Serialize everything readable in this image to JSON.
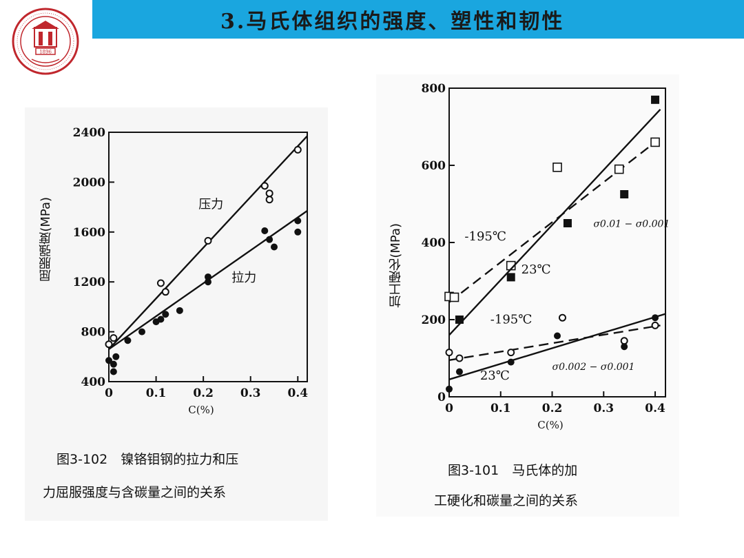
{
  "header": {
    "title": "3.马氏体组织的强度、塑性和韧性",
    "logo": {
      "icon": "university-seal-icon",
      "color": "#c0272d",
      "inner_text": "1896"
    }
  },
  "colors": {
    "title_bar": "#1aa6df"
  },
  "chart_data": [
    {
      "type": "scatter",
      "caption_line1": "图3-102　镍铬钼钢的拉力和压",
      "caption_line2": "力屈服强度与含碳量之间的关系",
      "xlabel": "C(%)",
      "ylabel": "屈服强度(MPa)",
      "xlim": [
        0,
        0.42
      ],
      "ylim": [
        400,
        2400
      ],
      "xticks": [
        0,
        0.1,
        0.2,
        0.3,
        0.4
      ],
      "xtick_labels": [
        "0",
        "0.1",
        "0.2",
        "0.3",
        "0.4"
      ],
      "yticks": [
        400,
        800,
        1200,
        1600,
        2000,
        2400
      ],
      "ytick_labels": [
        "400",
        "800",
        "1200",
        "1600",
        "2000",
        "2400"
      ],
      "grid": false,
      "series": [
        {
          "name": "压力",
          "marker": "open-circle",
          "points": [
            [
              0,
              700
            ],
            [
              0.01,
              750
            ],
            [
              0.11,
              1190
            ],
            [
              0.12,
              1120
            ],
            [
              0.21,
              1530
            ],
            [
              0.33,
              1970
            ],
            [
              0.34,
              1910
            ],
            [
              0.34,
              1860
            ],
            [
              0.4,
              2260
            ]
          ],
          "fit": [
            [
              0,
              660
            ],
            [
              0.42,
              2370
            ]
          ],
          "label_pos": [
            0.19,
            1790
          ]
        },
        {
          "name": "拉力",
          "marker": "filled-circle",
          "points": [
            [
              0,
              570
            ],
            [
              0.01,
              480
            ],
            [
              0.01,
              540
            ],
            [
              0.015,
              600
            ],
            [
              0.04,
              730
            ],
            [
              0.07,
              800
            ],
            [
              0.1,
              880
            ],
            [
              0.11,
              900
            ],
            [
              0.12,
              940
            ],
            [
              0.15,
              970
            ],
            [
              0.21,
              1200
            ],
            [
              0.21,
              1240
            ],
            [
              0.33,
              1610
            ],
            [
              0.34,
              1540
            ],
            [
              0.35,
              1480
            ],
            [
              0.4,
              1600
            ],
            [
              0.4,
              1690
            ]
          ],
          "fit": [
            [
              0,
              660
            ],
            [
              0.42,
              1770
            ]
          ],
          "label_pos": [
            0.26,
            1200
          ]
        }
      ]
    },
    {
      "type": "scatter",
      "caption_line1": "图3-101　马氏体的加",
      "caption_line2": "工硬化和碳量之间的关系",
      "xlabel": "C(%)",
      "ylabel": "加工硬化(MPa)",
      "xlim": [
        0,
        0.42
      ],
      "ylim": [
        0,
        800
      ],
      "xticks": [
        0,
        0.1,
        0.2,
        0.3,
        0.4
      ],
      "xtick_labels": [
        "0",
        "0.1",
        "0.2",
        "0.3",
        "0.4"
      ],
      "yticks": [
        0,
        200,
        400,
        600,
        800
      ],
      "ytick_labels": [
        "0",
        "200",
        "400",
        "600",
        "800"
      ],
      "grid": false,
      "annotations": [
        {
          "text": "σ0.01 − σ0.001",
          "at": [
            0.28,
            440
          ]
        },
        {
          "text": "σ0.002 − σ0.001",
          "at": [
            0.2,
            70
          ]
        }
      ],
      "series": [
        {
          "name": "-195℃",
          "marker": "open-square",
          "line": "dashed",
          "points": [
            [
              0,
              260
            ],
            [
              0.01,
              258
            ],
            [
              0.12,
              340
            ],
            [
              0.21,
              595
            ],
            [
              0.33,
              590
            ],
            [
              0.4,
              660
            ]
          ],
          "fit": [
            [
              0,
              245
            ],
            [
              0.4,
              660
            ]
          ],
          "label_pos": [
            0.03,
            405
          ]
        },
        {
          "name": "23℃",
          "marker": "filled-square",
          "line": "solid",
          "points": [
            [
              0.02,
              200
            ],
            [
              0.12,
              310
            ],
            [
              0.23,
              450
            ],
            [
              0.34,
              525
            ],
            [
              0.4,
              770
            ]
          ],
          "fit": [
            [
              0,
              160
            ],
            [
              0.41,
              745
            ]
          ],
          "label_pos": [
            0.14,
            320
          ]
        },
        {
          "name": "-195℃",
          "marker": "open-circle",
          "line": "dashed",
          "points": [
            [
              0,
              115
            ],
            [
              0.02,
              100
            ],
            [
              0.12,
              115
            ],
            [
              0.22,
              205
            ],
            [
              0.34,
              145
            ],
            [
              0.4,
              185
            ]
          ],
          "fit": [
            [
              0,
              95
            ],
            [
              0.41,
              185
            ]
          ],
          "label_pos": [
            0.08,
            190
          ]
        },
        {
          "name": "23℃",
          "marker": "filled-circle",
          "line": "solid",
          "points": [
            [
              0,
              20
            ],
            [
              0.02,
              65
            ],
            [
              0.12,
              90
            ],
            [
              0.21,
              158
            ],
            [
              0.34,
              130
            ],
            [
              0.4,
              205
            ]
          ],
          "fit": [
            [
              0,
              45
            ],
            [
              0.42,
              215
            ]
          ],
          "label_pos": [
            0.06,
            45
          ]
        }
      ]
    }
  ]
}
